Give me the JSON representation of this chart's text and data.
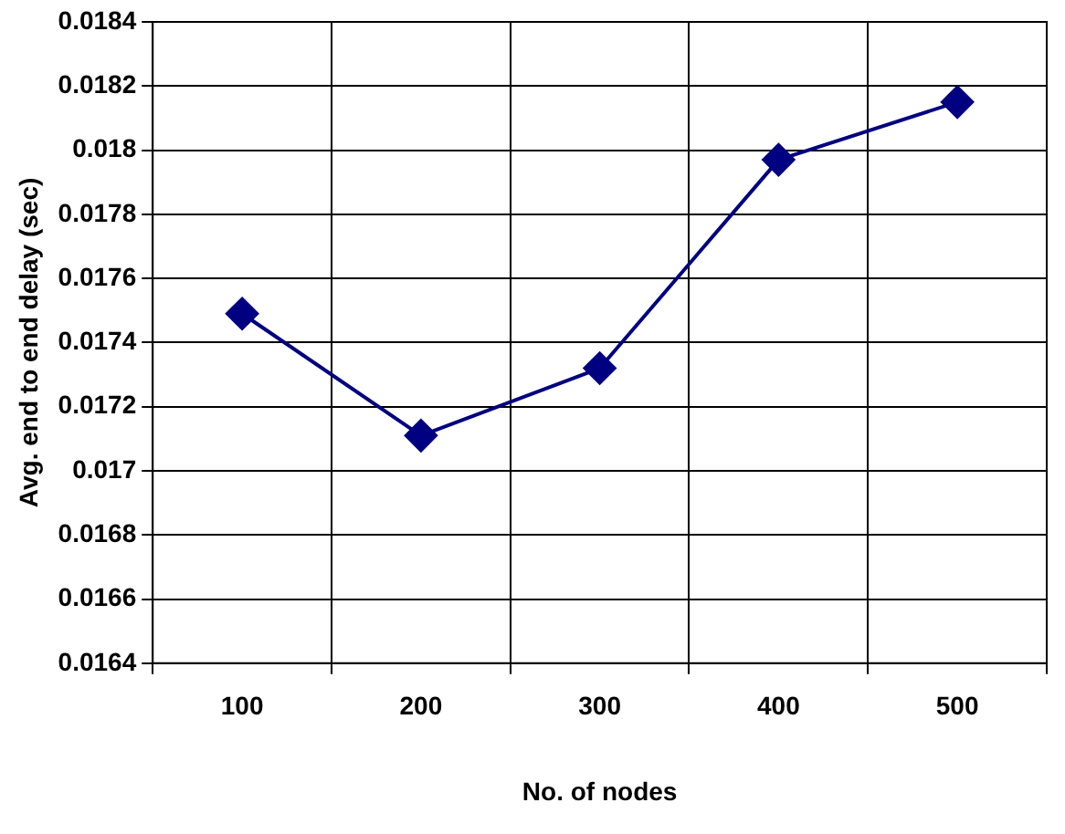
{
  "chart_data": {
    "type": "line",
    "xlabel": "No. of nodes",
    "ylabel": "Avg. end to end delay (sec)",
    "categories": [
      "100",
      "200",
      "300",
      "400",
      "500"
    ],
    "series": [
      {
        "color": "#000080",
        "values": [
          0.01749,
          0.01711,
          0.01732,
          0.01797,
          0.01815
        ]
      }
    ],
    "ylim": [
      0.0164,
      0.0184
    ],
    "yticks": [
      0.0164,
      0.0166,
      0.0168,
      0.017,
      0.0172,
      0.0174,
      0.0176,
      0.0178,
      0.018,
      0.0182,
      0.0184
    ],
    "grid": true,
    "legend": false,
    "marker": "diamond",
    "line_style": "solid"
  }
}
